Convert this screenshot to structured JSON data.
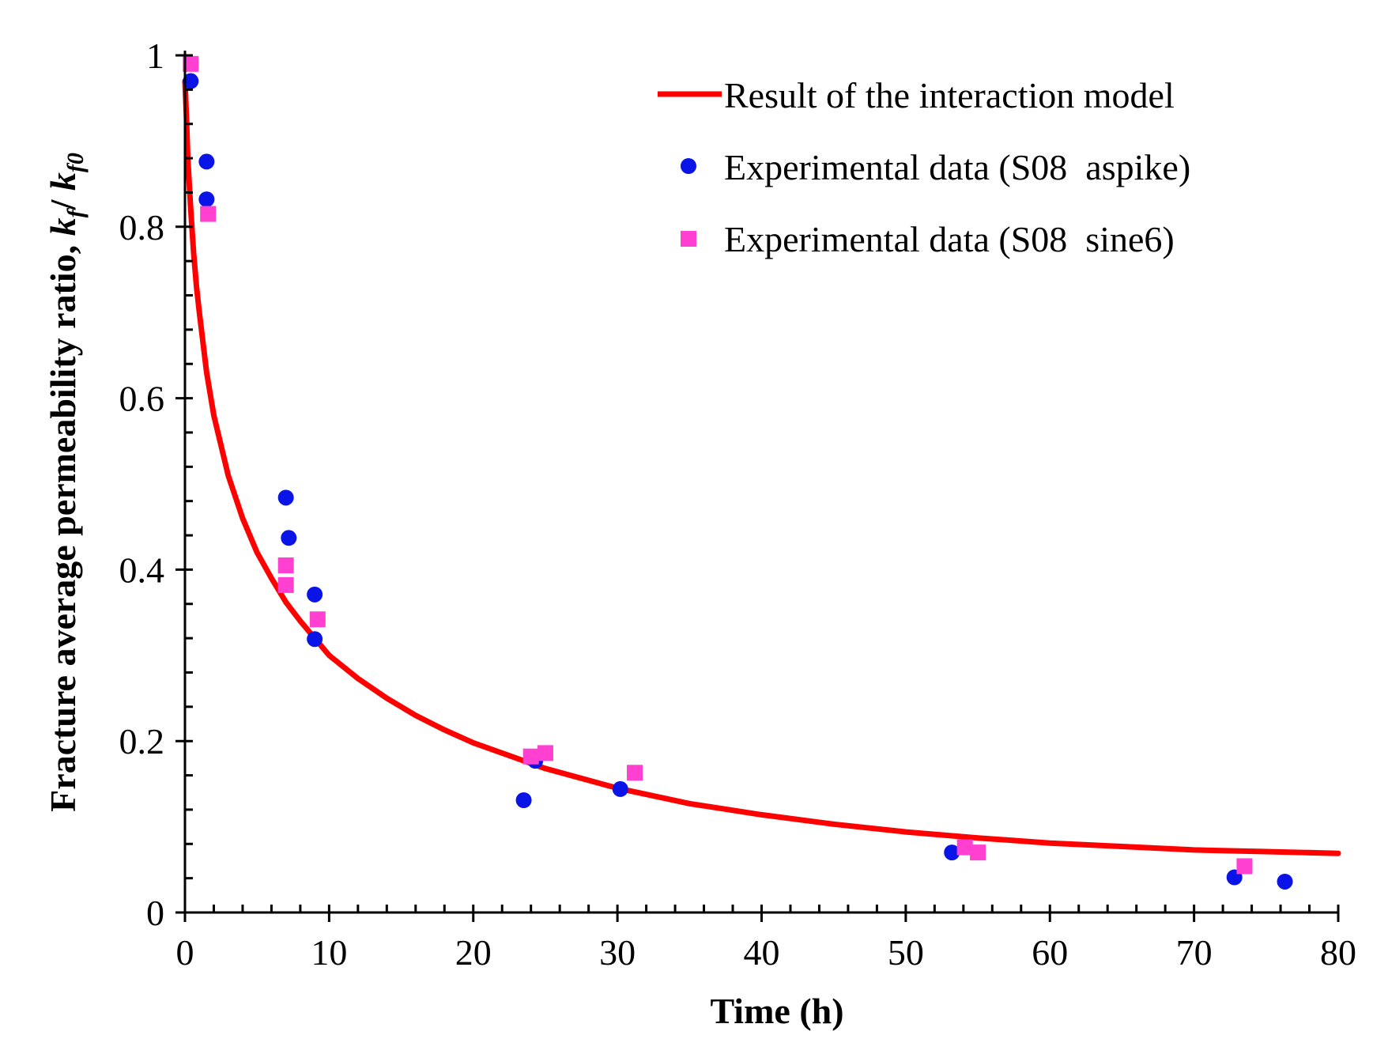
{
  "chart_data": {
    "type": "scatter",
    "title": "",
    "xlabel": "Time (h)",
    "ylabel_parts": [
      "Fracture average permeability ratio, ",
      "k",
      "f",
      "/ ",
      "k",
      "f0"
    ],
    "xlim": [
      0,
      80
    ],
    "ylim": [
      0,
      1
    ],
    "x_ticks": [
      0,
      10,
      20,
      30,
      40,
      50,
      60,
      70,
      80
    ],
    "x_tick_labels": [
      "0",
      "10",
      "20",
      "30",
      "40",
      "50",
      "60",
      "70",
      "80"
    ],
    "y_ticks": [
      0,
      0.2,
      0.4,
      0.6,
      0.8,
      1
    ],
    "y_tick_labels": [
      "0",
      "0.2",
      "0.4",
      "0.6",
      "0.8",
      "1"
    ],
    "x_minor_step": 2,
    "y_minor_step": 0.04,
    "grid": false,
    "legend_position": "top-right",
    "series": [
      {
        "name": "Result of the interaction model",
        "kind": "line",
        "color": "#ff0000",
        "x": [
          0,
          0.1,
          0.2,
          0.4,
          0.6,
          0.8,
          1,
          1.5,
          2,
          3,
          4,
          5,
          6,
          7,
          8,
          9,
          10,
          12,
          14,
          16,
          18,
          20,
          25,
          30,
          35,
          40,
          45,
          50,
          55,
          60,
          65,
          70,
          75,
          80
        ],
        "y": [
          0.97,
          0.93,
          0.88,
          0.82,
          0.77,
          0.73,
          0.7,
          0.63,
          0.58,
          0.51,
          0.46,
          0.42,
          0.39,
          0.362,
          0.34,
          0.32,
          0.3,
          0.273,
          0.25,
          0.23,
          0.213,
          0.198,
          0.168,
          0.145,
          0.127,
          0.114,
          0.103,
          0.094,
          0.087,
          0.081,
          0.077,
          0.073,
          0.071,
          0.069
        ]
      },
      {
        "name": "Experimental data (S08  aspike)",
        "kind": "scatter",
        "marker": "circle",
        "color": "#0a14e6",
        "x": [
          0.4,
          1.5,
          1.5,
          7,
          7.2,
          9,
          9,
          23.5,
          24.3,
          30.2,
          53.2,
          72.8,
          76.3
        ],
        "y": [
          0.97,
          0.876,
          0.832,
          0.484,
          0.437,
          0.371,
          0.319,
          0.131,
          0.177,
          0.144,
          0.07,
          0.041,
          0.036
        ]
      },
      {
        "name": "Experimental data (S08  sine6)",
        "kind": "scatter",
        "marker": "square",
        "color": "#ff40d0",
        "x": [
          0.4,
          1.6,
          7,
          7,
          9.2,
          24,
          25,
          31.2,
          54.1,
          55,
          73.5
        ],
        "y": [
          0.99,
          0.815,
          0.405,
          0.382,
          0.342,
          0.182,
          0.186,
          0.163,
          0.076,
          0.07,
          0.054
        ]
      }
    ]
  }
}
